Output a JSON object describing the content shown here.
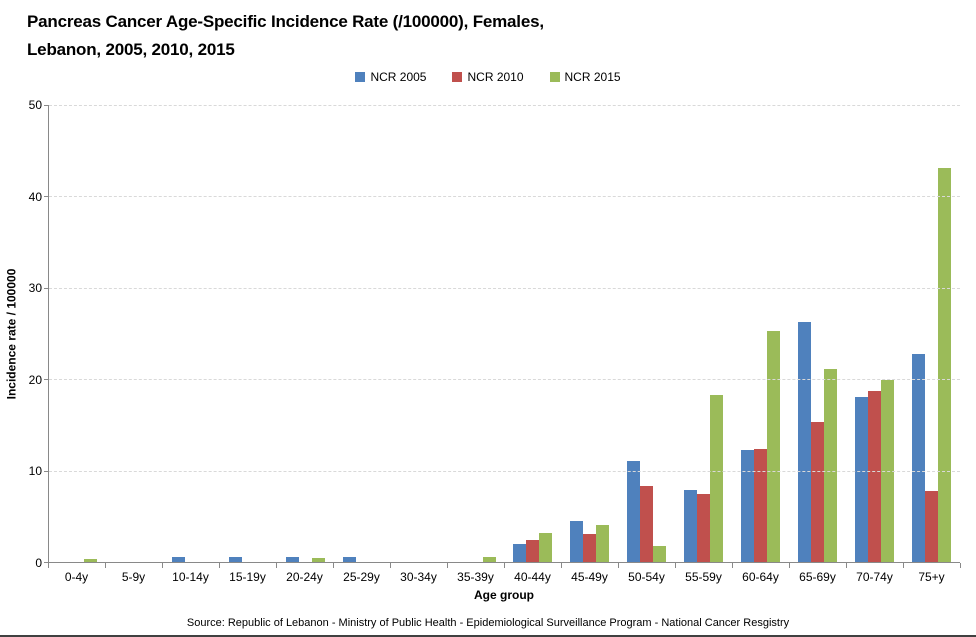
{
  "title": {
    "line1": "Pancreas Cancer Age-Specific Incidence Rate (/100000), Females,",
    "line2": "Lebanon, 2005, 2010, 2015"
  },
  "chart_data": {
    "type": "bar",
    "title": "Pancreas Cancer Age-Specific Incidence Rate (/100000), Females, Lebanon, 2005, 2010, 2015",
    "categories": [
      "0-4y",
      "5-9y",
      "10-14y",
      "15-19y",
      "20-24y",
      "25-29y",
      "30-34y",
      "35-39y",
      "40-44y",
      "45-49y",
      "50-54y",
      "55-59y",
      "60-64y",
      "65-69y",
      "70-74y",
      "75+y"
    ],
    "series": [
      {
        "name": "NCR 2005",
        "color": "#4F81BD",
        "values": [
          0,
          0,
          0.5,
          0.5,
          0.5,
          0.6,
          0,
          0,
          2.0,
          4.5,
          11.1,
          7.9,
          12.3,
          26.3,
          18.0,
          22.8
        ]
      },
      {
        "name": "NCR 2010",
        "color": "#C0504D",
        "values": [
          0,
          0,
          0,
          0,
          0,
          0,
          0,
          0,
          2.4,
          3.1,
          8.3,
          7.4,
          12.4,
          15.3,
          18.7,
          7.8
        ]
      },
      {
        "name": "NCR 2015",
        "color": "#9BBB59",
        "values": [
          0.3,
          0,
          0,
          0,
          0.4,
          0,
          0,
          0.5,
          3.2,
          4.0,
          1.8,
          18.3,
          25.3,
          21.1,
          19.9,
          43.1
        ]
      }
    ],
    "xlabel": "Age group",
    "ylabel": "Incidence  rate / 100000",
    "ylim": [
      0,
      50
    ],
    "yticks": [
      0,
      10,
      20,
      30,
      40,
      50
    ],
    "grid": true,
    "legend_position": "top-center"
  },
  "source": "Source: Republic of Lebanon - Ministry of Public Health - Epidemiological Surveillance Program - National Cancer Resgistry"
}
